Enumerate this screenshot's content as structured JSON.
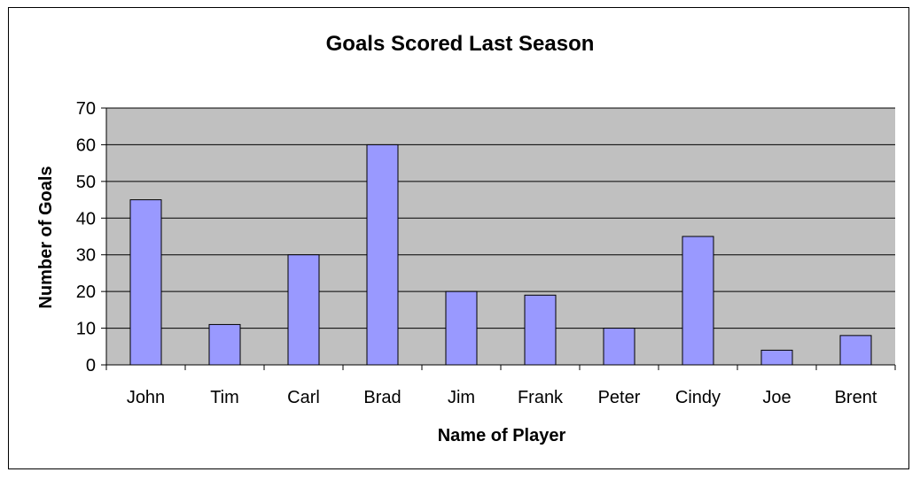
{
  "chart_data": {
    "type": "bar",
    "title": "Goals Scored Last Season",
    "xlabel": "Name of Player",
    "ylabel": "Number of Goals",
    "categories": [
      "John",
      "Tim",
      "Carl",
      "Brad",
      "Jim",
      "Frank",
      "Peter",
      "Cindy",
      "Joe",
      "Brent"
    ],
    "values": [
      45,
      11,
      30,
      60,
      20,
      19,
      10,
      35,
      4,
      8
    ],
    "ylim": [
      0,
      70
    ],
    "yticks": [
      0,
      10,
      20,
      30,
      40,
      50,
      60,
      70
    ],
    "grid": true,
    "legend": "none",
    "colors": {
      "bar_fill": "#9999ff",
      "plot_background": "#c0c0c0",
      "gridline": "#000000",
      "bar_stroke": "#000000"
    }
  }
}
